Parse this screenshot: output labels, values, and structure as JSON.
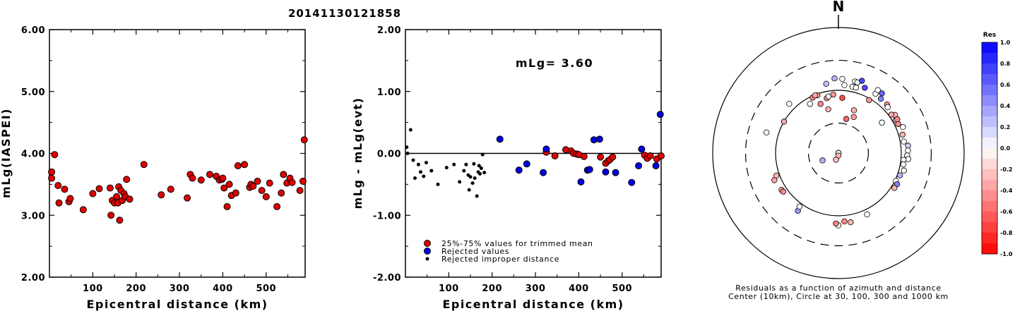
{
  "title": "20141130121858",
  "chart_data": [
    {
      "type": "scatter",
      "xlabel": "Epicentral distance (km)",
      "ylabel": "mLg(IASPEI)",
      "xlim": [
        0,
        590
      ],
      "ylim": [
        2.0,
        6.0
      ],
      "xticks": [
        "100",
        "200",
        "300",
        "400",
        "500"
      ],
      "xtick_values": [
        100,
        200,
        300,
        400,
        500
      ],
      "yticks": [
        "2.00",
        "3.00",
        "4.00",
        "5.00",
        "6.00"
      ],
      "ytick_values": [
        2,
        3,
        4,
        5,
        6
      ],
      "color": "#e00000",
      "points": [
        [
          5,
          3.7
        ],
        [
          5,
          3.6
        ],
        [
          12,
          3.98
        ],
        [
          20,
          3.48
        ],
        [
          22,
          3.2
        ],
        [
          35,
          3.42
        ],
        [
          45,
          3.22
        ],
        [
          48,
          3.27
        ],
        [
          78,
          3.09
        ],
        [
          100,
          3.35
        ],
        [
          115,
          3.43
        ],
        [
          140,
          3.44
        ],
        [
          142,
          3.0
        ],
        [
          145,
          3.24
        ],
        [
          150,
          3.2
        ],
        [
          155,
          3.3
        ],
        [
          158,
          3.2
        ],
        [
          162,
          2.92
        ],
        [
          160,
          3.46
        ],
        [
          165,
          3.4
        ],
        [
          168,
          3.24
        ],
        [
          172,
          3.35
        ],
        [
          175,
          3.3
        ],
        [
          178,
          3.58
        ],
        [
          185,
          3.26
        ],
        [
          218,
          3.82
        ],
        [
          258,
          3.33
        ],
        [
          280,
          3.42
        ],
        [
          318,
          3.28
        ],
        [
          325,
          3.66
        ],
        [
          330,
          3.6
        ],
        [
          350,
          3.57
        ],
        [
          370,
          3.66
        ],
        [
          385,
          3.63
        ],
        [
          392,
          3.57
        ],
        [
          398,
          3.58
        ],
        [
          400,
          3.6
        ],
        [
          403,
          3.44
        ],
        [
          410,
          3.14
        ],
        [
          415,
          3.5
        ],
        [
          420,
          3.32
        ],
        [
          430,
          3.36
        ],
        [
          435,
          3.8
        ],
        [
          450,
          3.82
        ],
        [
          462,
          3.45
        ],
        [
          465,
          3.5
        ],
        [
          470,
          3.47
        ],
        [
          480,
          3.55
        ],
        [
          490,
          3.4
        ],
        [
          500,
          3.3
        ],
        [
          508,
          3.52
        ],
        [
          525,
          3.14
        ],
        [
          535,
          3.36
        ],
        [
          540,
          3.66
        ],
        [
          548,
          3.52
        ],
        [
          555,
          3.6
        ],
        [
          560,
          3.53
        ],
        [
          578,
          3.4
        ],
        [
          585,
          3.55
        ],
        [
          588,
          4.22
        ]
      ]
    },
    {
      "type": "scatter",
      "xlabel": "Epicentral distance (km)",
      "ylabel": "mLg - mLg(evt)",
      "xlim": [
        0,
        590
      ],
      "ylim": [
        -2.0,
        2.0
      ],
      "xticks": [
        "100",
        "200",
        "300",
        "400",
        "500"
      ],
      "xtick_values": [
        100,
        200,
        300,
        400,
        500
      ],
      "yticks": [
        "-2.00",
        "-1.00",
        "0.00",
        "1.00",
        "2.00"
      ],
      "ytick_values": [
        -2,
        -1,
        0,
        1,
        2
      ],
      "reference_line": 0,
      "annotation": "mLg= 3.60",
      "legend": [
        {
          "label": "25%-75% values for trimmed mean",
          "color": "#e00000"
        },
        {
          "label": "Rejected values",
          "color": "#0000e0"
        },
        {
          "label": "Rejected improper distance",
          "color": "#000000"
        }
      ],
      "series": [
        {
          "name": "25%-75% values for trimmed mean",
          "color": "#e00000",
          "points": [
            [
              325,
              0.02
            ],
            [
              345,
              -0.04
            ],
            [
              370,
              0.06
            ],
            [
              382,
              0.04
            ],
            [
              388,
              0.0
            ],
            [
              395,
              -0.01
            ],
            [
              400,
              -0.02
            ],
            [
              412,
              -0.05
            ],
            [
              450,
              -0.06
            ],
            [
              462,
              -0.16
            ],
            [
              468,
              -0.12
            ],
            [
              472,
              -0.1
            ],
            [
              478,
              -0.06
            ],
            [
              552,
              -0.03
            ],
            [
              558,
              -0.08
            ],
            [
              565,
              -0.04
            ],
            [
              580,
              -0.09
            ],
            [
              590,
              -0.04
            ]
          ]
        },
        {
          "name": "Rejected values",
          "color": "#0000e0",
          "points": [
            [
              218,
              0.23
            ],
            [
              262,
              -0.27
            ],
            [
              280,
              -0.17
            ],
            [
              318,
              -0.31
            ],
            [
              325,
              0.07
            ],
            [
              405,
              -0.46
            ],
            [
              420,
              -0.27
            ],
            [
              425,
              -0.26
            ],
            [
              435,
              0.22
            ],
            [
              448,
              0.23
            ],
            [
              462,
              -0.3
            ],
            [
              485,
              -0.31
            ],
            [
              522,
              -0.47
            ],
            [
              538,
              -0.2
            ],
            [
              545,
              0.07
            ],
            [
              578,
              -0.2
            ],
            [
              588,
              0.63
            ]
          ]
        },
        {
          "name": "Rejected improper distance",
          "color": "#000000",
          "points": [
            [
              3,
              0.1
            ],
            [
              5,
              0.0
            ],
            [
              12,
              0.38
            ],
            [
              18,
              -0.11
            ],
            [
              22,
              -0.4
            ],
            [
              30,
              -0.18
            ],
            [
              35,
              -0.3
            ],
            [
              42,
              -0.37
            ],
            [
              48,
              -0.15
            ],
            [
              60,
              -0.28
            ],
            [
              75,
              -0.5
            ],
            [
              95,
              -0.23
            ],
            [
              112,
              -0.18
            ],
            [
              125,
              -0.46
            ],
            [
              135,
              -0.28
            ],
            [
              140,
              -0.18
            ],
            [
              145,
              -0.35
            ],
            [
              147,
              -0.59
            ],
            [
              150,
              -0.38
            ],
            [
              155,
              -0.48
            ],
            [
              158,
              -0.17
            ],
            [
              160,
              -0.4
            ],
            [
              165,
              -0.69
            ],
            [
              168,
              -0.3
            ],
            [
              170,
              -0.2
            ],
            [
              172,
              -0.33
            ],
            [
              175,
              -0.24
            ],
            [
              178,
              -0.02
            ],
            [
              182,
              -0.31
            ]
          ]
        }
      ]
    },
    {
      "type": "scatter",
      "projection": "polar",
      "north_label": "N",
      "caption_line1": "Residuals as a function of azimuth and distance",
      "caption_line2": "Center (10km), Circle at 30, 100, 300 and 1000 km",
      "rings_km": [
        30,
        100,
        300,
        1000
      ],
      "colorbar_title": "Res",
      "colorbar_ticks": [
        "1.0",
        "0.8",
        "0.6",
        "0.4",
        "0.2",
        "0.0",
        "-0.2",
        "-0.4",
        "-0.6",
        "-0.8",
        "-1.0"
      ],
      "colorbar_values": [
        1.0,
        0.8,
        0.6,
        0.4,
        0.2,
        0.0,
        -0.2,
        -0.4,
        -0.6,
        -0.8,
        -1.0
      ],
      "points": [
        {
          "az": 335,
          "dist": 6,
          "res": 0.0
        },
        {
          "az": 40,
          "dist": 6,
          "res": 0.23
        },
        {
          "az": 120,
          "dist": 8,
          "res": 0.0
        },
        {
          "az": 180,
          "dist": 11,
          "res": -0.3
        },
        {
          "az": 200,
          "dist": 13,
          "res": -0.25
        },
        {
          "az": 245,
          "dist": 19,
          "res": 0.3
        },
        {
          "az": 13,
          "dist": 36,
          "res": -0.6
        },
        {
          "az": 23,
          "dist": 42,
          "res": -0.4
        },
        {
          "az": 20,
          "dist": 53,
          "res": -0.3
        },
        {
          "az": 55,
          "dist": 70,
          "res": 0.0
        },
        {
          "az": 347,
          "dist": 52,
          "res": -0.3
        },
        {
          "az": 340,
          "dist": 68,
          "res": -0.45
        },
        {
          "az": 348,
          "dist": 78,
          "res": -0.5
        },
        {
          "az": 350,
          "dist": 82,
          "res": 0.0
        },
        {
          "az": 355,
          "dist": 86,
          "res": -0.4
        },
        {
          "az": 4,
          "dist": 76,
          "res": -0.7
        },
        {
          "az": 330,
          "dist": 80,
          "res": 0.0
        },
        {
          "az": 340,
          "dist": 95,
          "res": -0.35
        },
        {
          "az": 335,
          "dist": 94,
          "res": -0.5
        },
        {
          "az": 338,
          "dist": 98,
          "res": -0.35
        },
        {
          "az": 30,
          "dist": 94,
          "res": -0.4
        },
        {
          "az": 300,
          "dist": 100,
          "res": -0.35
        },
        {
          "az": 350,
          "dist": 132,
          "res": 0.25
        },
        {
          "az": 5,
          "dist": 122,
          "res": 0.0
        },
        {
          "az": 12,
          "dist": 120,
          "res": 0.0
        },
        {
          "az": 15,
          "dist": 120,
          "res": 0.0
        },
        {
          "az": 22,
          "dist": 132,
          "res": 0.7
        },
        {
          "az": 32,
          "dist": 130,
          "res": 0.0
        },
        {
          "az": 38,
          "dist": 125,
          "res": 0.5
        },
        {
          "az": 45,
          "dist": 124,
          "res": -0.45
        },
        {
          "az": 47,
          "dist": 118,
          "res": 0.0
        },
        {
          "az": 56,
          "dist": 122,
          "res": -0.25
        },
        {
          "az": 54,
          "dist": 110,
          "res": -0.35
        },
        {
          "az": 60,
          "dist": 112,
          "res": -0.3
        },
        {
          "az": 64,
          "dist": 114,
          "res": -0.45
        },
        {
          "az": 60,
          "dist": 120,
          "res": -0.45
        },
        {
          "az": 68,
          "dist": 128,
          "res": 0.0
        },
        {
          "az": 74,
          "dist": 115,
          "res": -0.3
        },
        {
          "az": 80,
          "dist": 114,
          "res": 0.0
        },
        {
          "az": 84,
          "dist": 130,
          "res": 0.2
        },
        {
          "az": 88,
          "dist": 128,
          "res": 0.0
        },
        {
          "az": 92,
          "dist": 124,
          "res": 0.0
        },
        {
          "az": 95,
          "dist": 130,
          "res": 0.0
        },
        {
          "az": 96,
          "dist": 110,
          "res": 0.0
        },
        {
          "az": 100,
          "dist": 112,
          "res": 0.0
        },
        {
          "az": 105,
          "dist": 120,
          "res": 0.0
        },
        {
          "az": 110,
          "dist": 110,
          "res": 0.3
        },
        {
          "az": 116,
          "dist": 104,
          "res": 0.0
        },
        {
          "az": 118,
          "dist": 114,
          "res": 0.5
        },
        {
          "az": 122,
          "dist": 112,
          "res": -0.3
        },
        {
          "az": 155,
          "dist": 120,
          "res": 0.0
        },
        {
          "az": 170,
          "dist": 132,
          "res": -0.3
        },
        {
          "az": 175,
          "dist": 124,
          "res": -0.45
        },
        {
          "az": 180,
          "dist": 142,
          "res": 0.0
        },
        {
          "az": 182,
          "dist": 133,
          "res": -0.5
        },
        {
          "az": 215,
          "dist": 133,
          "res": 0.4
        },
        {
          "az": 216,
          "dist": 113,
          "res": 0.0
        },
        {
          "az": 237,
          "dist": 120,
          "res": -0.4
        },
        {
          "az": 235,
          "dist": 118,
          "res": -0.45
        },
        {
          "az": 247,
          "dist": 128,
          "res": -0.35
        },
        {
          "az": 250,
          "dist": 112,
          "res": -0.3
        },
        {
          "az": 286,
          "dist": 155,
          "res": 0.0
        },
        {
          "az": 315,
          "dist": 128,
          "res": 0.0
        },
        {
          "az": 357,
          "dist": 155,
          "res": 0.3
        },
        {
          "az": 3,
          "dist": 152,
          "res": 0.0
        },
        {
          "az": 13,
          "dist": 148,
          "res": 0.0
        },
        {
          "az": 15,
          "dist": 146,
          "res": 0.0
        },
        {
          "az": 18,
          "dist": 162,
          "res": 0.7
        },
        {
          "az": 32,
          "dist": 152,
          "res": 0.0
        },
        {
          "az": 36,
          "dist": 150,
          "res": 0.6
        }
      ]
    }
  ]
}
